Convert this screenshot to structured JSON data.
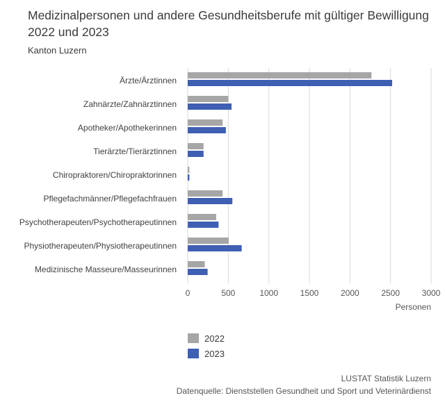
{
  "chart_data": {
    "type": "bar",
    "orientation": "horizontal",
    "title": "Medizinalpersonen und andere Gesundheitsberufe mit gültiger Bewilligung 2022 und 2023",
    "subtitle": "Kanton Luzern",
    "xlabel": "Personen",
    "ylabel": "",
    "xlim": [
      0,
      3000
    ],
    "xticks": [
      "0",
      "500",
      "1000",
      "1500",
      "2000",
      "2500",
      "3000"
    ],
    "grid": true,
    "legend_position": "bottom",
    "categories": [
      "Ärzte/Ärztinnen",
      "Zahnärzte/Zahnärztinnen",
      "Apotheker/Apothekerinnen",
      "Tierärzte/Tierärztinnen",
      "Chiropraktoren/Chiropraktorinnen",
      "Pflegefachmänner/Pflegefachfrauen",
      "Psychotherapeuten/Psychotherapeutinnen",
      "Physiotherapeuten/Physiotherapeutinnen",
      "Medizinische Masseure/Masseurinnen"
    ],
    "series": [
      {
        "name": "2022",
        "color": "#a6a6a6",
        "values": [
          2265,
          500,
          430,
          195,
          20,
          430,
          350,
          505,
          210
        ]
      },
      {
        "name": "2023",
        "color": "#3f5fb3",
        "values": [
          2520,
          540,
          470,
          195,
          20,
          550,
          380,
          665,
          245
        ]
      }
    ]
  },
  "source": {
    "publisher": "LUSTAT Statistik Luzern",
    "datasource": "Datenquelle: Dienststellen Gesundheit und Sport und Veterinärdienst"
  }
}
